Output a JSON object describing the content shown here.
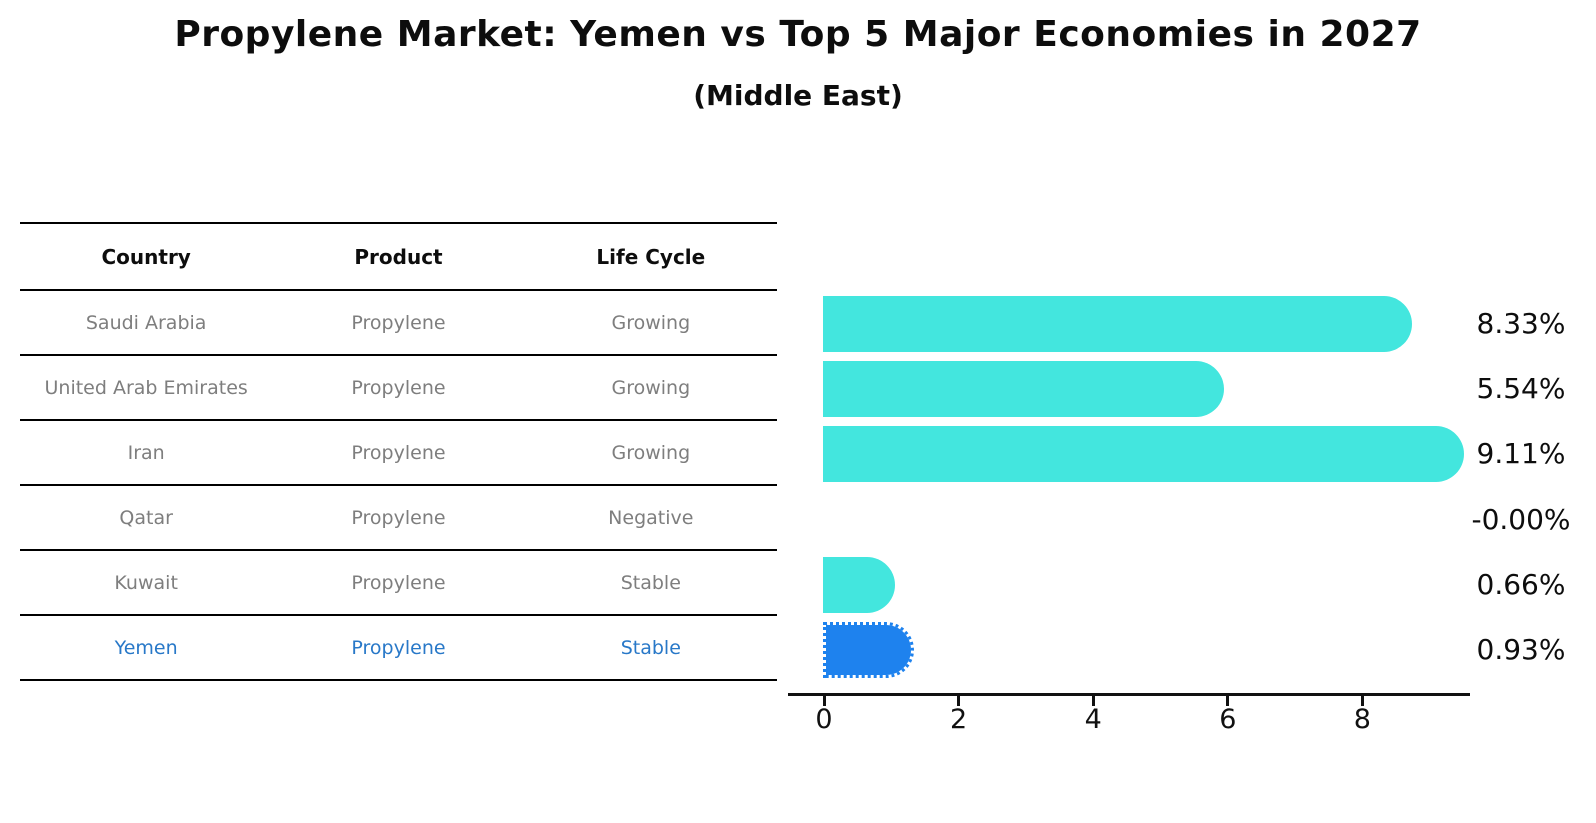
{
  "title": "Propylene Market: Yemen vs Top 5 Major Economies in 2027",
  "subtitle": "(Middle East)",
  "table": {
    "headers": [
      "Country",
      "Product",
      "Life Cycle"
    ],
    "rows": [
      {
        "country": "Saudi Arabia",
        "product": "Propylene",
        "life_cycle": "Growing",
        "highlight": false
      },
      {
        "country": "United Arab Emirates",
        "product": "Propylene",
        "life_cycle": "Growing",
        "highlight": false
      },
      {
        "country": "Iran",
        "product": "Propylene",
        "life_cycle": "Growing",
        "highlight": false
      },
      {
        "country": "Qatar",
        "product": "Propylene",
        "life_cycle": "Negative",
        "highlight": false
      },
      {
        "country": "Kuwait",
        "product": "Propylene",
        "life_cycle": "Stable",
        "highlight": false
      },
      {
        "country": "Yemen",
        "product": "Propylene",
        "life_cycle": "Stable",
        "highlight": true
      }
    ]
  },
  "chart_data": {
    "type": "bar",
    "orientation": "horizontal",
    "title": "Propylene Market: Yemen vs Top 5 Major Economies in 2027",
    "subtitle": "(Middle East)",
    "categories": [
      "Saudi Arabia",
      "United Arab Emirates",
      "Iran",
      "Qatar",
      "Kuwait",
      "Yemen"
    ],
    "values": [
      8.33,
      5.54,
      9.11,
      -0.0,
      0.66,
      0.93
    ],
    "value_labels": [
      "8.33%",
      "5.54%",
      "9.11%",
      "-0.00%",
      "0.66%",
      "0.93%"
    ],
    "x_ticks": [
      0,
      2,
      4,
      6,
      8
    ],
    "xlim": [
      -0.5,
      9.6
    ],
    "grid": false,
    "legend": "none",
    "bar_color": "#43e6de",
    "highlight_color": "#1e82ee",
    "highlight_index": 5,
    "highlight_edge_style": "dotted"
  },
  "colors": {
    "background": "#ffffff",
    "bar_cyan": "#43e6de",
    "bar_highlight_blue": "#1e82ee",
    "table_text_gray": "#7e7e7e",
    "highlight_text_blue": "#2878c8",
    "axis_black": "#111111"
  }
}
